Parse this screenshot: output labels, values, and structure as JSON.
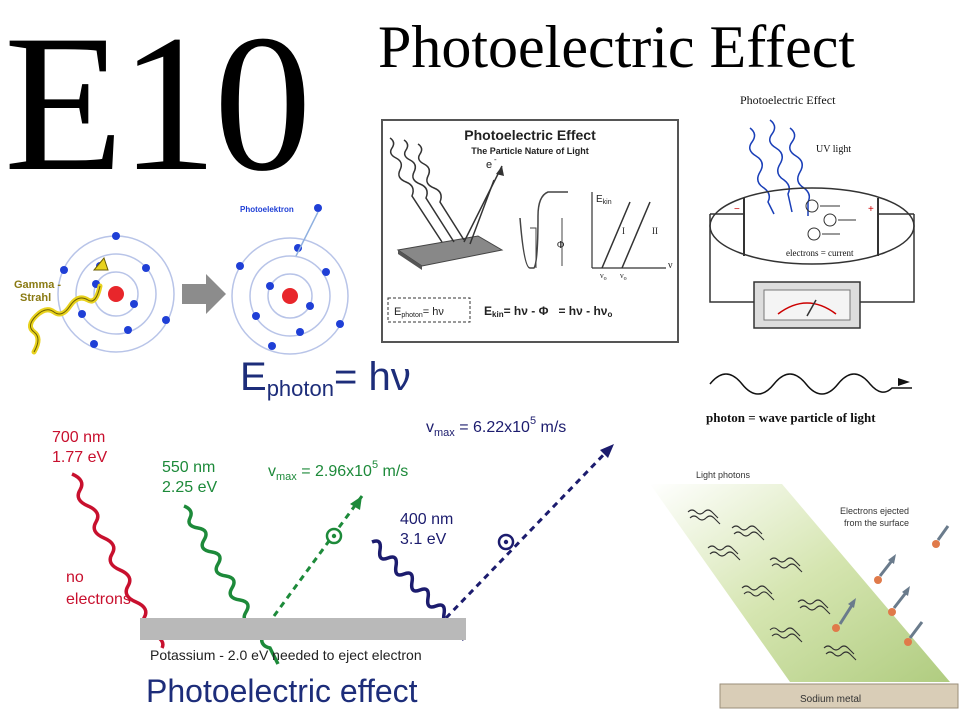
{
  "header": {
    "code": "E10",
    "title": "Photoelectric Effect"
  },
  "atom_panel": {
    "ray_label_line1": "Gamma -",
    "ray_label_line2": "Strahl",
    "electron_label": "Photoelektron",
    "colors": {
      "nucleus": "#e8262b",
      "electron": "#1f3fd6",
      "ray": "#e8d21e",
      "ray_text": "#8a7a12",
      "arrow": "#8c8c8c"
    }
  },
  "particle_panel": {
    "title": "Photoelectric Effect",
    "subtitle": "The Particle Nature of Light",
    "electron_symbol": "e",
    "electron_sup": "-",
    "ekin_axis": "E",
    "ekin_sub": "kin",
    "phi_label": "Φ",
    "nu_axis": "ν",
    "nu0_label": "ν",
    "nu0_sub": "o",
    "line_1": "I",
    "line_2": "II",
    "formula_box": "E",
    "formula_box_sub": "photon",
    "formula_box_rhs": "= hν",
    "formula_main": "E",
    "formula_main_sub": "kin",
    "formula_main_rhs": "= hν - Φ   = hν - hν",
    "formula_main_end_sub": "o"
  },
  "circuit_panel": {
    "title": "Photoelectric Effect",
    "uv_label": "UV light",
    "current_label": "electrons = current",
    "minus": "−",
    "plus": "+"
  },
  "wave_panel": {
    "caption": "photon = wave particle of light"
  },
  "energy_formula": {
    "lhs": "E",
    "sub": "photon",
    "rhs": "= hν"
  },
  "spectrum_panel": {
    "red_nm": "700 nm",
    "red_ev": "1.77 eV",
    "red_note_1": "no",
    "red_note_2": "electrons",
    "green_nm": "550 nm",
    "green_ev": "2.25 eV",
    "green_v": "v",
    "green_v_sub": "max",
    "green_v_val": " = 2.96x10",
    "green_v_exp": "5",
    "green_v_unit": " m/s",
    "blue_nm": "400 nm",
    "blue_ev": "3.1 eV",
    "blue_v": "v",
    "blue_v_sub": "max",
    "blue_v_val": " = 6.22x10",
    "blue_v_exp": "5",
    "blue_v_unit": " m/s",
    "plate_label": "Potassium - 2.0 eV needed to eject electron",
    "caption": "Photoelectric effect",
    "colors": {
      "red": "#c8102e",
      "green": "#1d8a3a",
      "blue": "#1c1c6e",
      "plate": "#b9b9b9",
      "caption": "#1d2d7a"
    }
  },
  "sodium_panel": {
    "photons_label": "Light photons",
    "electrons_label_1": "Electrons ejected",
    "electrons_label_2": "from the surface",
    "metal_label": "Sodium metal",
    "colors": {
      "beam": "#c9dda0",
      "metal": "#d9cdb7"
    }
  }
}
